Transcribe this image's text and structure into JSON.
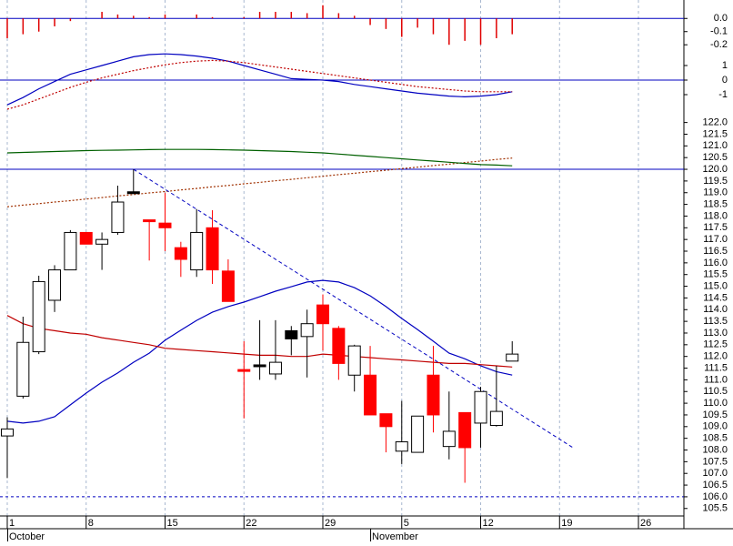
{
  "chart_data": [
    {
      "type": "bar",
      "color": "#e00000",
      "zero_line_color": "#0000c0",
      "x": [
        0,
        1,
        2,
        3,
        4,
        5,
        6,
        7,
        8,
        9,
        10,
        11,
        12,
        13,
        14,
        15,
        16,
        17,
        18,
        19,
        20,
        21,
        22,
        23,
        24,
        25,
        26,
        27,
        28,
        29,
        30,
        31,
        32
      ],
      "values": [
        -0.15,
        -0.12,
        -0.1,
        -0.06,
        -0.02,
        0.0,
        0.05,
        0.03,
        0.02,
        0.01,
        0.03,
        0.0,
        0.03,
        0.01,
        0.0,
        0.01,
        0.05,
        0.05,
        0.05,
        0.04,
        0.1,
        0.04,
        0.02,
        -0.05,
        -0.08,
        -0.14,
        -0.07,
        -0.12,
        -0.2,
        -0.17,
        -0.2,
        -0.15,
        -0.12
      ],
      "xlim": [
        -0.46,
        42.88
      ],
      "ylim": [
        -0.24,
        0.14
      ],
      "yticks": [
        {
          "value": 0,
          "label": "0.0"
        },
        {
          "value": -0.1,
          "label": "-0.1"
        },
        {
          "value": -0.2,
          "label": "-0.2"
        }
      ]
    },
    {
      "type": "line",
      "zero_line_color": "#0000c0",
      "x": [
        0,
        1,
        2,
        3,
        4,
        5,
        6,
        7,
        8,
        9,
        10,
        11,
        12,
        13,
        14,
        15,
        16,
        17,
        18,
        19,
        20,
        21,
        22,
        23,
        24,
        25,
        26,
        27,
        28,
        29,
        30,
        31,
        32
      ],
      "xlim": [
        -0.46,
        42.88
      ],
      "ylim": [
        -2,
        2
      ],
      "yticks": [
        1,
        0,
        -1
      ],
      "series": [
        {
          "color": "#0000c0",
          "dash": false,
          "values": [
            -1.7,
            -1.2,
            -0.6,
            -0.1,
            0.4,
            0.7,
            1.0,
            1.3,
            1.6,
            1.75,
            1.8,
            1.75,
            1.65,
            1.5,
            1.3,
            1.0,
            0.7,
            0.4,
            0.1,
            0.05,
            0.0,
            -0.1,
            -0.3,
            -0.45,
            -0.6,
            -0.75,
            -0.9,
            -1.0,
            -1.1,
            -1.15,
            -1.1,
            -1.0,
            -0.8
          ]
        },
        {
          "color": "#c00000",
          "dash": true,
          "values": [
            -2.0,
            -1.7,
            -1.3,
            -0.9,
            -0.5,
            -0.15,
            0.15,
            0.4,
            0.65,
            0.85,
            1.05,
            1.2,
            1.3,
            1.35,
            1.3,
            1.2,
            1.05,
            0.9,
            0.75,
            0.6,
            0.45,
            0.3,
            0.15,
            0.0,
            -0.15,
            -0.3,
            -0.45,
            -0.55,
            -0.65,
            -0.75,
            -0.8,
            -0.8,
            -0.8
          ]
        }
      ]
    },
    {
      "type": "candlestick",
      "x": [
        0,
        1,
        2,
        3,
        4,
        5,
        6,
        7,
        8,
        9,
        10,
        11,
        12,
        13,
        14,
        15,
        16,
        17,
        18,
        19,
        20,
        21,
        22,
        23,
        24,
        25,
        26,
        27,
        28,
        29,
        30,
        31,
        32
      ],
      "open": [
        108.6,
        110.3,
        112.2,
        114.4,
        115.7,
        117.3,
        116.8,
        117.3,
        119.0,
        117.8,
        117.7,
        116.65,
        115.7,
        117.5,
        115.65,
        111.4,
        111.6,
        111.25,
        112.75,
        112.85,
        114.2,
        113.2,
        111.2,
        111.2,
        109.55,
        107.95,
        107.9,
        111.2,
        108.15,
        109.6,
        109.15,
        109.05,
        111.8
      ],
      "high": [
        109.4,
        113.7,
        115.45,
        115.9,
        117.4,
        117.3,
        117.3,
        119.3,
        120.0,
        117.8,
        119.0,
        116.9,
        118.3,
        118.25,
        116.15,
        112.65,
        113.55,
        113.55,
        113.3,
        114.0,
        114.65,
        113.3,
        112.5,
        112.45,
        109.55,
        110.1,
        109.45,
        112.45,
        110.5,
        109.6,
        110.7,
        111.6,
        112.65
      ],
      "low": [
        106.8,
        110.2,
        112.1,
        113.9,
        115.7,
        116.8,
        115.7,
        117.2,
        119.0,
        116.1,
        116.5,
        115.4,
        115.4,
        115.1,
        114.35,
        109.35,
        111.0,
        111.0,
        112.05,
        111.1,
        112.25,
        111.0,
        110.5,
        109.5,
        107.9,
        107.4,
        107.9,
        108.75,
        107.6,
        106.6,
        108.1,
        109.0,
        111.8
      ],
      "close": [
        108.9,
        112.6,
        115.2,
        115.7,
        117.3,
        116.8,
        117.0,
        118.6,
        119.0,
        117.8,
        117.5,
        116.15,
        117.3,
        115.7,
        114.35,
        111.4,
        111.6,
        111.75,
        113.1,
        113.4,
        113.4,
        111.7,
        112.45,
        109.5,
        109.0,
        108.35,
        109.45,
        109.5,
        108.8,
        108.1,
        110.5,
        109.65,
        112.1
      ],
      "fills": [
        "#ffffff",
        "#ffffff",
        "#ffffff",
        "#ffffff",
        "#ffffff",
        "#ff0000",
        "#ffffff",
        "#ffffff",
        "#000000",
        "#ff0000",
        "#ff0000",
        "#ff0000",
        "#ffffff",
        "#ff0000",
        "#ff0000",
        "#ff0000",
        "#000000",
        "#ffffff",
        "#000000",
        "#ffffff",
        "#ff0000",
        "#ff0000",
        "#ffffff",
        "#ff0000",
        "#ff0000",
        "#ffffff",
        "#ffffff",
        "#ff0000",
        "#ffffff",
        "#ff0000",
        "#ffffff",
        "#ffffff",
        "#ffffff"
      ],
      "series": [
        {
          "color": "#0000c0",
          "dash": false,
          "values": [
            109.23,
            109.15,
            109.23,
            109.42,
            109.93,
            110.43,
            110.9,
            111.29,
            111.75,
            112.14,
            112.69,
            113.12,
            113.54,
            113.89,
            114.13,
            114.32,
            114.55,
            114.79,
            114.98,
            115.18,
            115.25,
            115.18,
            114.94,
            114.59,
            114.13,
            113.62,
            113.15,
            112.65,
            112.14,
            111.9,
            111.6,
            111.35,
            111.2
          ]
        },
        {
          "color": "#c00000",
          "dash": false,
          "values": [
            113.75,
            113.4,
            113.2,
            113.1,
            113.0,
            112.95,
            112.8,
            112.7,
            112.6,
            112.5,
            112.35,
            112.3,
            112.25,
            112.2,
            112.15,
            112.1,
            112.05,
            112.05,
            112.0,
            112.0,
            112.1,
            112.05,
            112.0,
            111.95,
            111.9,
            111.85,
            111.8,
            111.75,
            111.7,
            111.7,
            111.65,
            111.6,
            111.55
          ]
        },
        {
          "color": "#a03000",
          "dash": true,
          "values": [
            118.4,
            118.47,
            118.53,
            118.6,
            118.66,
            118.73,
            118.79,
            118.86,
            118.92,
            118.99,
            119.05,
            119.12,
            119.18,
            119.25,
            119.31,
            119.38,
            119.44,
            119.51,
            119.57,
            119.64,
            119.7,
            119.77,
            119.83,
            119.9,
            119.96,
            120.03,
            120.09,
            120.16,
            120.22,
            120.29,
            120.35,
            120.42,
            120.48
          ]
        },
        {
          "color": "#006000",
          "dash": false,
          "values": [
            120.7,
            120.72,
            120.74,
            120.76,
            120.78,
            120.8,
            120.81,
            120.82,
            120.83,
            120.84,
            120.85,
            120.85,
            120.85,
            120.84,
            120.83,
            120.82,
            120.8,
            120.78,
            120.76,
            120.73,
            120.7,
            120.65,
            120.6,
            120.55,
            120.5,
            120.45,
            120.4,
            120.35,
            120.3,
            120.25,
            120.2,
            120.18,
            120.15
          ]
        }
      ],
      "trendline": {
        "color": "#0000c0",
        "x": [
          8,
          35.85
        ],
        "y": [
          120.0,
          108.1
        ]
      },
      "hlines": [
        {
          "value": 120.0,
          "color": "#0000c0",
          "dash": false
        },
        {
          "value": 106.0,
          "color": "#0000c0",
          "dash": true
        }
      ],
      "xlim": [
        -0.46,
        42.88
      ],
      "ylim": [
        105.18,
        122.53
      ],
      "xticks": [
        {
          "value": 0,
          "label": "1"
        },
        {
          "value": 5,
          "label": "8"
        },
        {
          "value": 10,
          "label": "15"
        },
        {
          "value": 15,
          "label": "22"
        },
        {
          "value": 20,
          "label": "29"
        },
        {
          "value": 25,
          "label": "5"
        },
        {
          "value": 30,
          "label": "12"
        },
        {
          "value": 35,
          "label": "19"
        },
        {
          "value": 40,
          "label": "26"
        }
      ],
      "months": [
        {
          "value": 0,
          "label": "October"
        },
        {
          "value": 23,
          "label": "November"
        }
      ],
      "yticks": [
        {
          "value": 122,
          "label": "122.0"
        },
        {
          "value": 121.5,
          "label": "121.5"
        },
        {
          "value": 121,
          "label": "121.0"
        },
        {
          "value": 120.5,
          "label": "120.5"
        },
        {
          "value": 120,
          "label": "120.0"
        },
        {
          "value": 119.5,
          "label": "119.5"
        },
        {
          "value": 119,
          "label": "119.0"
        },
        {
          "value": 118.5,
          "label": "118.5"
        },
        {
          "value": 118,
          "label": "118.0"
        },
        {
          "value": 117.5,
          "label": "117.5"
        },
        {
          "value": 117,
          "label": "117.0"
        },
        {
          "value": 116.5,
          "label": "116.5"
        },
        {
          "value": 116,
          "label": "116.0"
        },
        {
          "value": 115.5,
          "label": "115.5"
        },
        {
          "value": 115,
          "label": "115.0"
        },
        {
          "value": 114.5,
          "label": "114.5"
        },
        {
          "value": 114,
          "label": "114.0"
        },
        {
          "value": 113.5,
          "label": "113.5"
        },
        {
          "value": 113,
          "label": "113.0"
        },
        {
          "value": 112.5,
          "label": "112.5"
        },
        {
          "value": 112,
          "label": "112.0"
        },
        {
          "value": 111.5,
          "label": "111.5"
        },
        {
          "value": 111,
          "label": "111.0"
        },
        {
          "value": 110.5,
          "label": "110.5"
        },
        {
          "value": 110,
          "label": "110.0"
        },
        {
          "value": 109.5,
          "label": "109.5"
        },
        {
          "value": 109,
          "label": "109.0"
        },
        {
          "value": 108.5,
          "label": "108.5"
        },
        {
          "value": 108,
          "label": "108.0"
        },
        {
          "value": 107.5,
          "label": "107.5"
        },
        {
          "value": 107,
          "label": "107.0"
        },
        {
          "value": 106.5,
          "label": "106.5"
        },
        {
          "value": 106,
          "label": "106.0"
        },
        {
          "value": 105.5,
          "label": "105.5"
        }
      ]
    }
  ]
}
